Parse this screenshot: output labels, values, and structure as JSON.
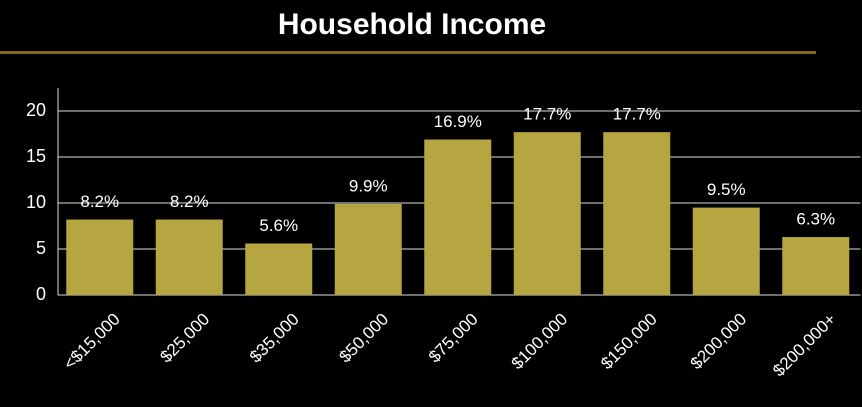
{
  "chart_data": {
    "type": "bar",
    "title": "Household Income",
    "categories": [
      "<$15,000",
      "$25,000",
      "$35,000",
      "$50,000",
      "$75,000",
      "$100,000",
      "$150,000",
      "$200,000",
      "$200,000+"
    ],
    "values": [
      8.2,
      8.2,
      5.6,
      9.9,
      16.9,
      17.7,
      17.7,
      9.5,
      6.3
    ],
    "value_labels": [
      "8.2%",
      "8.2%",
      "5.6%",
      "9.9%",
      "16.9%",
      "17.7%",
      "17.7%",
      "9.5%",
      "6.3%"
    ],
    "color": "#b5a642",
    "ylim": [
      0,
      22.5
    ],
    "yticks": [
      0,
      5,
      10,
      15,
      20
    ],
    "grid": true
  }
}
